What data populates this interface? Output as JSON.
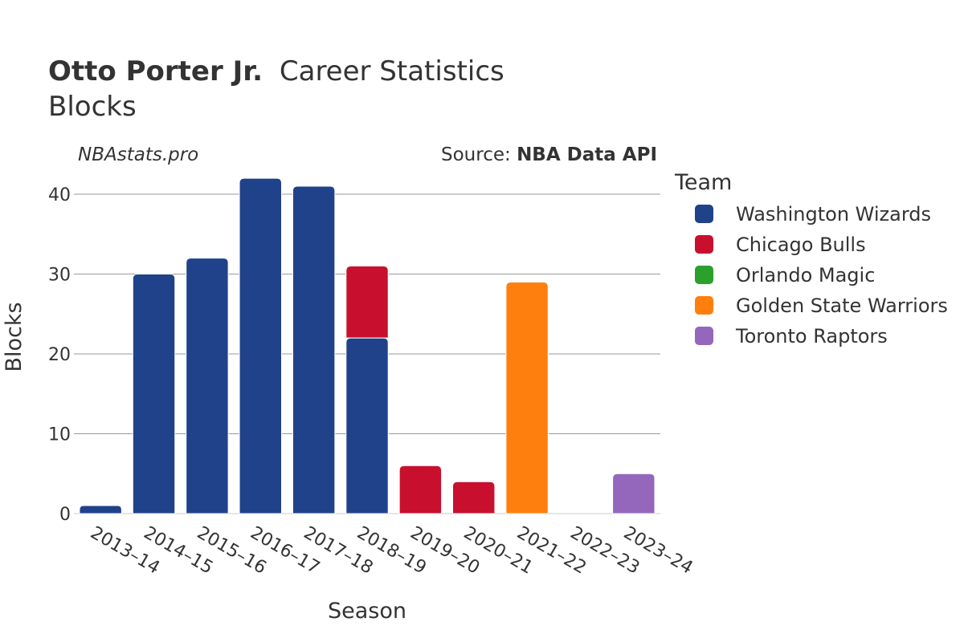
{
  "header": {
    "title_bold": "Otto Porter Jr.",
    "title_rest": "Career Statistics",
    "subtitle": "Blocks",
    "site": "NBAstats.pro",
    "source_prefix": "Source: ",
    "source_name": "NBA Data API"
  },
  "legend": {
    "title": "Team",
    "items": [
      {
        "name": "Washington Wizards",
        "color": "#1f428a"
      },
      {
        "name": "Chicago Bulls",
        "color": "#c8102e"
      },
      {
        "name": "Orlando Magic",
        "color": "#2ca02c"
      },
      {
        "name": "Golden State Warriors",
        "color": "#ff7f0e"
      },
      {
        "name": "Toronto Raptors",
        "color": "#9467bd"
      }
    ]
  },
  "chart_data": {
    "type": "bar",
    "stacked": true,
    "xlabel": "Season",
    "ylabel": "Blocks",
    "ylim": [
      0,
      45
    ],
    "yticks": [
      0,
      10,
      20,
      30,
      40
    ],
    "grid": true,
    "legend_position": "right",
    "categories": [
      "2013–14",
      "2014–15",
      "2015–16",
      "2016–17",
      "2017–18",
      "2018–19",
      "2019–20",
      "2020–21",
      "2021–22",
      "2022–23",
      "2023–24"
    ],
    "series": [
      {
        "name": "Washington Wizards",
        "color": "#1f428a",
        "values": [
          1,
          30,
          32,
          42,
          41,
          22,
          0,
          0,
          0,
          0,
          0
        ]
      },
      {
        "name": "Chicago Bulls",
        "color": "#c8102e",
        "values": [
          0,
          0,
          0,
          0,
          0,
          9,
          6,
          4,
          0,
          0,
          0
        ]
      },
      {
        "name": "Orlando Magic",
        "color": "#2ca02c",
        "values": [
          0,
          0,
          0,
          0,
          0,
          0,
          0,
          0,
          0,
          0,
          0
        ]
      },
      {
        "name": "Golden State Warriors",
        "color": "#ff7f0e",
        "values": [
          0,
          0,
          0,
          0,
          0,
          0,
          0,
          0,
          29,
          0,
          0
        ]
      },
      {
        "name": "Toronto Raptors",
        "color": "#9467bd",
        "values": [
          0,
          0,
          0,
          0,
          0,
          0,
          0,
          0,
          0,
          0,
          5
        ]
      }
    ]
  }
}
